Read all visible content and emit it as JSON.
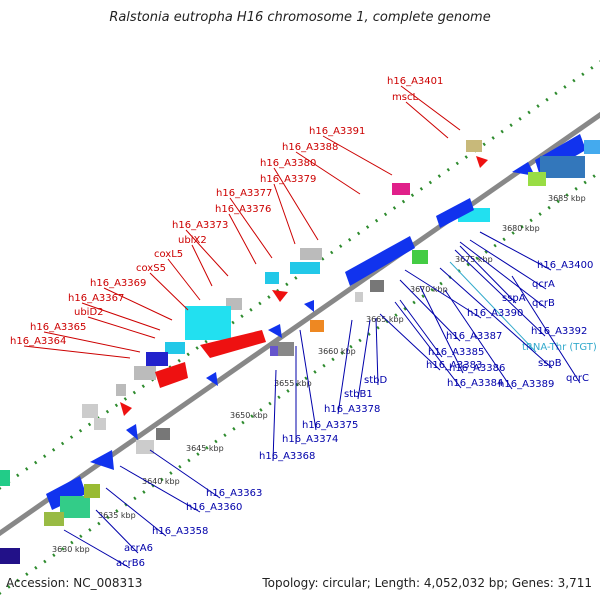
{
  "title": "Ralstonia eutropha H16 chromosome 1, complete genome",
  "footer": {
    "accession": "Accession: NC_008313",
    "summary": "Topology: circular; Length: 4,052,032 bp; Genes: 3,711"
  },
  "colors": {
    "forward_label": "#cc0000",
    "reverse_label": "#0000aa",
    "rna_label": "#33aacc",
    "backbone": "#888888",
    "dots": "#2e8b2e"
  },
  "ticks": [
    "3630 kbp",
    "3635 kbp",
    "3640 kbp",
    "3645 kbp",
    "3650 kbp",
    "3655 kbp",
    "3660 kbp",
    "3665 kbp",
    "3670 kbp",
    "3675 kbp",
    "3680 kbp",
    "3685 kbp"
  ],
  "forward_labels": [
    "h16_A3401",
    "mscL",
    "h16_A3391",
    "h16_A3388",
    "h16_A3380",
    "h16_A3379",
    "h16_A3377",
    "h16_A3376",
    "h16_A3373",
    "ubiX2",
    "coxL5",
    "coxS5",
    "h16_A3369",
    "h16_A3367",
    "ubiD2",
    "h16_A3365",
    "h16_A3364"
  ],
  "reverse_labels": [
    "h16_A3400",
    "qcrA",
    "qcrB",
    "sspA",
    "h16_A3392",
    "tRNA-Thr (TGT)",
    "sspB",
    "qcrC",
    "h16_A3390",
    "h16_A3387",
    "h16_A3389",
    "h16_A3386",
    "h16_A3385",
    "h16_A3384",
    "h16_A3383",
    "stbD",
    "stbB1",
    "h16_A3378",
    "h16_A3375",
    "h16_A3374",
    "h16_A3368",
    "h16_A3363",
    "h16_A3360",
    "h16_A3358",
    "acrA6",
    "acrB6"
  ]
}
